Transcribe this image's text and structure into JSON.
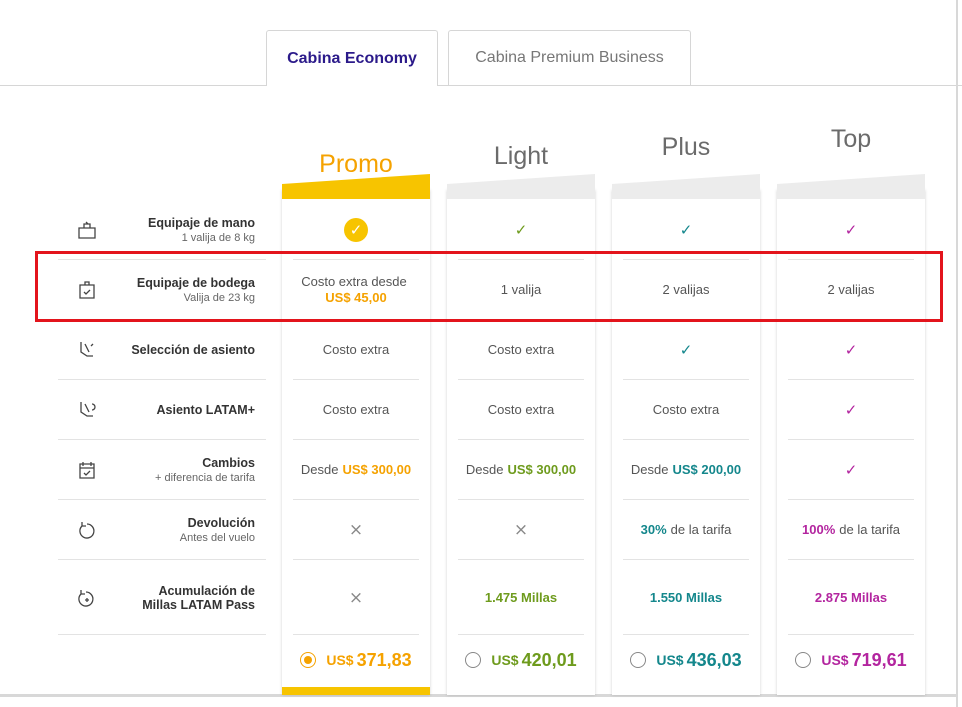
{
  "tabs": [
    "Cabina Economy",
    "Cabina Premium Business"
  ],
  "fares": [
    {
      "name": "Promo",
      "color": "#f5a200",
      "selected": true,
      "price": {
        "currency": "US$",
        "amount": "371,83"
      }
    },
    {
      "name": "Light",
      "color": "#6e9b1d",
      "selected": false,
      "price": {
        "currency": "US$",
        "amount": "420,01"
      }
    },
    {
      "name": "Plus",
      "color": "#14878c",
      "selected": false,
      "price": {
        "currency": "US$",
        "amount": "436,03"
      }
    },
    {
      "name": "Top",
      "color": "#b3259f",
      "selected": false,
      "price": {
        "currency": "US$",
        "amount": "719,61"
      }
    }
  ],
  "rows": [
    {
      "label": "Equipaje de mano",
      "sublabel": "1 valija de 8 kg",
      "cells": [
        {
          "text": "✓"
        },
        {
          "text": "✓"
        },
        {
          "text": "✓"
        },
        {
          "text": "✓"
        }
      ]
    },
    {
      "label": "Equipaje de bodega",
      "sublabel": "Valija de 23 kg",
      "cells": [
        {
          "prefix": "Costo extra desde",
          "emphasis": "US$ 45,00"
        },
        {
          "text": "1 valija"
        },
        {
          "text": "2 valijas"
        },
        {
          "text": "2 valijas"
        }
      ]
    },
    {
      "label": "Selección de asiento",
      "cells": [
        {
          "text": "Costo extra"
        },
        {
          "text": "Costo extra"
        },
        {
          "text": "✓"
        },
        {
          "text": "✓"
        }
      ]
    },
    {
      "label": "Asiento LATAM+",
      "cells": [
        {
          "text": "Costo extra"
        },
        {
          "text": "Costo extra"
        },
        {
          "text": "Costo extra"
        },
        {
          "text": "✓"
        }
      ]
    },
    {
      "label": "Cambios",
      "sublabel": "+ diferencia de tarifa",
      "cells": [
        {
          "prefix": "Desde",
          "emphasis": "US$ 300,00"
        },
        {
          "prefix": "Desde",
          "emphasis": "US$ 300,00"
        },
        {
          "prefix": "Desde",
          "emphasis": "US$ 200,00"
        },
        {
          "text": "✓"
        }
      ]
    },
    {
      "label": "Devolución",
      "sublabel": "Antes del vuelo",
      "cells": [
        {
          "text": "×"
        },
        {
          "text": "×"
        },
        {
          "emphasis": "30%",
          "suffix": "de la tarifa"
        },
        {
          "emphasis": "100%",
          "suffix": "de la tarifa"
        }
      ]
    },
    {
      "label": "Acumulación de Millas LATAM Pass",
      "cells": [
        {
          "text": "×"
        },
        {
          "emphasis": "1.475 Millas"
        },
        {
          "emphasis": "1.550 Millas"
        },
        {
          "emphasis": "2.875 Millas"
        }
      ]
    }
  ]
}
